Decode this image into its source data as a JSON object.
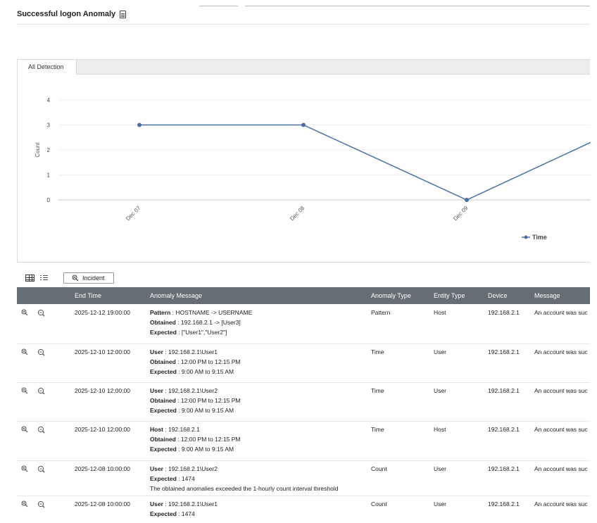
{
  "page": {
    "title": "Successful logon Anomaly",
    "title_icon": "document-icon"
  },
  "chart_tabs": [
    "All Detection"
  ],
  "chart_data": {
    "type": "line",
    "categories": [
      "Dec 07",
      "Dec 08",
      "Dec 09"
    ],
    "ylabel": "Count",
    "yticks": [
      0,
      1,
      2,
      3,
      4
    ],
    "ylim": [
      0,
      4
    ],
    "series": [
      {
        "name": "Time",
        "values": [
          3,
          3,
          0
        ],
        "continues_to": 2.3,
        "color": "#4a6fa5"
      }
    ],
    "grid": true,
    "legend_position": "bottom-right"
  },
  "toolbar": {
    "grid_view_icon": "table-view-icon",
    "list_view_icon": "list-view-icon",
    "incident_label": "Incident"
  },
  "table": {
    "columns": [
      "End Time",
      "Anomaly Message",
      "Anomaly Type",
      "Entity Type",
      "Device",
      "Message"
    ],
    "rows": [
      {
        "end_time": "2025-12-12 19:00:00",
        "lines": [
          {
            "key": "Pattern",
            "value": " : HOSTNAME -> USERNAME"
          },
          {
            "key": "Obtained",
            "value": " : 192.168.2.1 -> [User3]"
          },
          {
            "key": "Expected",
            "value": " : [\"User1\",\"User2\"]"
          }
        ],
        "anomaly_type": "Pattern",
        "entity_type": "Host",
        "device": "192.168.2.1",
        "message": "An account was suc"
      },
      {
        "end_time": "2025-12-10 12:00:00",
        "lines": [
          {
            "key": "User",
            "value": " : 192.168.2.1\\User1"
          },
          {
            "key": "Obtained",
            "value": " : 12:00 PM to 12:15 PM"
          },
          {
            "key": "Expected",
            "value": " : 9:00 AM to 9:15 AM"
          }
        ],
        "anomaly_type": "Time",
        "entity_type": "User",
        "device": "192.168.2.1",
        "message": "An account was suc"
      },
      {
        "end_time": "2025-12-10 12:00:00",
        "lines": [
          {
            "key": "User",
            "value": " : 192.168.2.1\\User2"
          },
          {
            "key": "Obtained",
            "value": " : 12:00 PM to 12:15 PM"
          },
          {
            "key": "Expected",
            "value": " : 9:00 AM to 9:15 AM"
          }
        ],
        "anomaly_type": "Time",
        "entity_type": "User",
        "device": "192.168.2.1",
        "message": "An account was suc"
      },
      {
        "end_time": "2025-12-10 12:00:00",
        "lines": [
          {
            "key": "Host",
            "value": " : 192.168.2.1"
          },
          {
            "key": "Obtained",
            "value": " : 12:00 PM to 12:15 PM"
          },
          {
            "key": "Expected",
            "value": " : 9:00 AM to 9:15 AM"
          }
        ],
        "anomaly_type": "Time",
        "entity_type": "Host",
        "device": "192.168.2.1",
        "message": "An account was suc"
      },
      {
        "end_time": "2025-12-08 10:00:00",
        "lines": [
          {
            "key": "User",
            "value": " : 192.168.2.1\\User2"
          },
          {
            "key": "Expected",
            "value": " : 1474"
          },
          {
            "key": "",
            "value": "The obtained anomalies exceeded the 1-hourly count interval threshold"
          }
        ],
        "anomaly_type": "Count",
        "entity_type": "User",
        "device": "192.168.2.1",
        "message": "An account was suc"
      },
      {
        "end_time": "2025-12-08 10:00:00",
        "lines": [
          {
            "key": "User",
            "value": " : 192.168.2.1\\User1"
          },
          {
            "key": "Expected",
            "value": " : 1474"
          }
        ],
        "anomaly_type": "Count",
        "entity_type": "User",
        "device": "192.168.2.1",
        "message": "An account was suc"
      }
    ],
    "row_icons": [
      "incident-icon",
      "zoom-icon"
    ]
  }
}
